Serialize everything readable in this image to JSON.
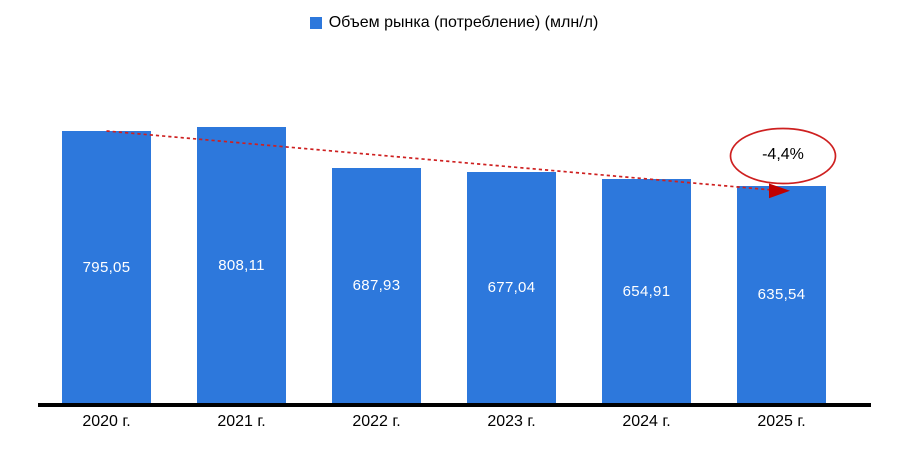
{
  "legend": {
    "label": "Объем рынка (потребление) (млн/л)",
    "marker_color": "#2d78dc"
  },
  "annotation": {
    "text": "-4,4%"
  },
  "colors": {
    "bar": "#2d78dc",
    "trend_red": "#ce2020",
    "arrow_red": "#c00000",
    "axis_black": "#000000",
    "value_label_white": "#ffffff"
  },
  "chart_data": {
    "type": "bar",
    "title": "",
    "xlabel": "",
    "ylabel": "",
    "categories": [
      "2020 г.",
      "2021 г.",
      "2022 г.",
      "2023 г.",
      "2024 г.",
      "2025 г."
    ],
    "series": [
      {
        "name": "Объем рынка (потребление) (млн/л)",
        "values": [
          795.05,
          808.11,
          687.93,
          677.04,
          654.91,
          635.54
        ]
      }
    ],
    "value_labels": [
      "795,05",
      "808,11",
      "687,93",
      "677,04",
      "654,91",
      "635,54"
    ],
    "ylim": [
      0,
      850
    ],
    "grid": false,
    "legend_position": "top-center",
    "annotations": [
      {
        "type": "trend-arrow",
        "style": "dotted",
        "from_category": "2020 г.",
        "to_category": "2025 г.",
        "label": "-4,4%",
        "label_shape": "ellipse"
      }
    ]
  }
}
